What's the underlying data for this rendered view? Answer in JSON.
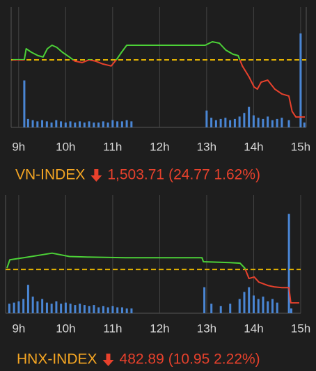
{
  "chart_data": [
    {
      "type": "line",
      "name": "VN-INDEX",
      "index_value": "1,503.71",
      "change": "(24.77 1.62%)",
      "x": [
        8.87,
        9.12,
        9.16,
        9.27,
        9.41,
        9.52,
        9.61,
        9.71,
        9.81,
        9.93,
        10.08,
        10.2,
        10.35,
        10.5,
        10.64,
        10.79,
        10.97,
        11.09,
        11.19,
        11.3,
        11.41,
        12.97,
        13.12,
        13.27,
        13.41,
        13.56,
        13.67,
        13.76,
        13.9,
        14.01,
        14.08,
        14.16,
        14.3,
        14.45,
        14.6,
        14.75,
        14.82,
        14.9,
        15.09
      ],
      "values": [
        1528.5,
        1528.5,
        1533.3,
        1531.8,
        1530.3,
        1529.7,
        1533.3,
        1534.8,
        1533.9,
        1531.8,
        1529.7,
        1527.9,
        1527.3,
        1528.5,
        1527.9,
        1526.7,
        1525.8,
        1528.8,
        1531.8,
        1534.8,
        1534.8,
        1534.8,
        1536.3,
        1535.7,
        1532.7,
        1530.9,
        1530.3,
        1525.8,
        1521.2,
        1516.7,
        1515.8,
        1518.8,
        1519.7,
        1515.8,
        1513.7,
        1512.8,
        1506.1,
        1503.7,
        1503.7
      ],
      "reference": 1528.48,
      "xlim": [
        8.84,
        15.12
      ],
      "ylim": [
        1499.2,
        1551.4
      ],
      "xticks": [
        {
          "value": 9,
          "label": "9h"
        },
        {
          "value": 10,
          "label": "10h"
        },
        {
          "value": 11,
          "label": "11h"
        },
        {
          "value": 12,
          "label": "12h"
        },
        {
          "value": 13,
          "label": "13h"
        },
        {
          "value": 14,
          "label": "14h"
        },
        {
          "value": 15,
          "label": "15h"
        }
      ],
      "up_color": "#4cd137",
      "down_color": "#e8412c",
      "reference_color": "#e6b400",
      "volume_color": "#4a86d4",
      "volume": {
        "ylim": [
          0,
          100
        ],
        "x": [
          9.12,
          9.2,
          9.3,
          9.4,
          9.5,
          9.6,
          9.7,
          9.8,
          9.9,
          10.0,
          10.1,
          10.2,
          10.3,
          10.4,
          10.5,
          10.6,
          10.7,
          10.8,
          10.9,
          11.0,
          11.1,
          11.2,
          11.3,
          11.4,
          13.0,
          13.1,
          13.2,
          13.3,
          13.4,
          13.5,
          13.6,
          13.7,
          13.8,
          13.9,
          14.0,
          14.1,
          14.2,
          14.3,
          14.4,
          14.5,
          14.6,
          14.75,
          15.0,
          15.08
        ],
        "values": [
          39,
          7,
          6,
          5,
          6,
          5,
          4,
          6,
          5,
          4,
          5,
          4,
          5,
          4,
          5,
          4,
          4,
          5,
          4,
          6,
          5,
          5,
          6,
          5,
          14,
          8,
          6,
          7,
          8,
          6,
          7,
          9,
          12,
          17,
          10,
          8,
          7,
          9,
          6,
          7,
          8,
          6,
          78,
          4
        ]
      }
    },
    {
      "type": "line",
      "name": "HNX-INDEX",
      "index_value": "482.89",
      "change": "(10.95 2.22%)",
      "x": [
        8.75,
        8.81,
        9.19,
        9.71,
        10.08,
        10.53,
        11.27,
        12.9,
        12.93,
        13.49,
        13.71,
        13.81,
        13.9,
        14.01,
        14.11,
        14.3,
        14.45,
        14.6,
        14.75,
        14.79,
        14.97
      ],
      "values": [
        494.3,
        497.0,
        497.9,
        499.2,
        498.1,
        497.9,
        497.7,
        497.7,
        496.4,
        496.1,
        495.9,
        494.3,
        490.9,
        491.4,
        489.7,
        488.6,
        488.1,
        487.9,
        487.9,
        482.9,
        482.9
      ],
      "reference": 493.84,
      "xlim": [
        8.72,
        15.0
      ],
      "ylim": [
        479.5,
        518.3
      ],
      "xticks": [
        {
          "value": 9,
          "label": "9h"
        },
        {
          "value": 10,
          "label": "10h"
        },
        {
          "value": 11,
          "label": "11h"
        },
        {
          "value": 12,
          "label": "12h"
        },
        {
          "value": 13,
          "label": "13h"
        },
        {
          "value": 14,
          "label": "14h"
        },
        {
          "value": 15,
          "label": "15h"
        }
      ],
      "up_color": "#4cd137",
      "down_color": "#e8412c",
      "reference_color": "#e6b400",
      "volume_color": "#4a86d4",
      "volume": {
        "ylim": [
          0,
          100
        ],
        "x": [
          8.8,
          8.9,
          9.0,
          9.1,
          9.2,
          9.3,
          9.4,
          9.5,
          9.6,
          9.7,
          9.8,
          9.9,
          10.0,
          10.1,
          10.2,
          10.3,
          10.4,
          10.5,
          10.6,
          10.7,
          10.8,
          10.9,
          11.0,
          11.1,
          11.2,
          11.3,
          11.4,
          12.95,
          13.1,
          13.3,
          13.5,
          13.7,
          13.8,
          13.9,
          14.0,
          14.1,
          14.2,
          14.3,
          14.4,
          14.5,
          14.75,
          14.8
        ],
        "values": [
          8,
          9,
          10,
          12,
          24,
          14,
          10,
          12,
          9,
          8,
          10,
          8,
          9,
          8,
          7,
          8,
          7,
          6,
          7,
          5,
          6,
          5,
          6,
          5,
          5,
          4,
          4,
          22,
          8,
          6,
          8,
          12,
          18,
          22,
          15,
          12,
          14,
          10,
          12,
          9,
          84,
          4
        ]
      }
    }
  ]
}
